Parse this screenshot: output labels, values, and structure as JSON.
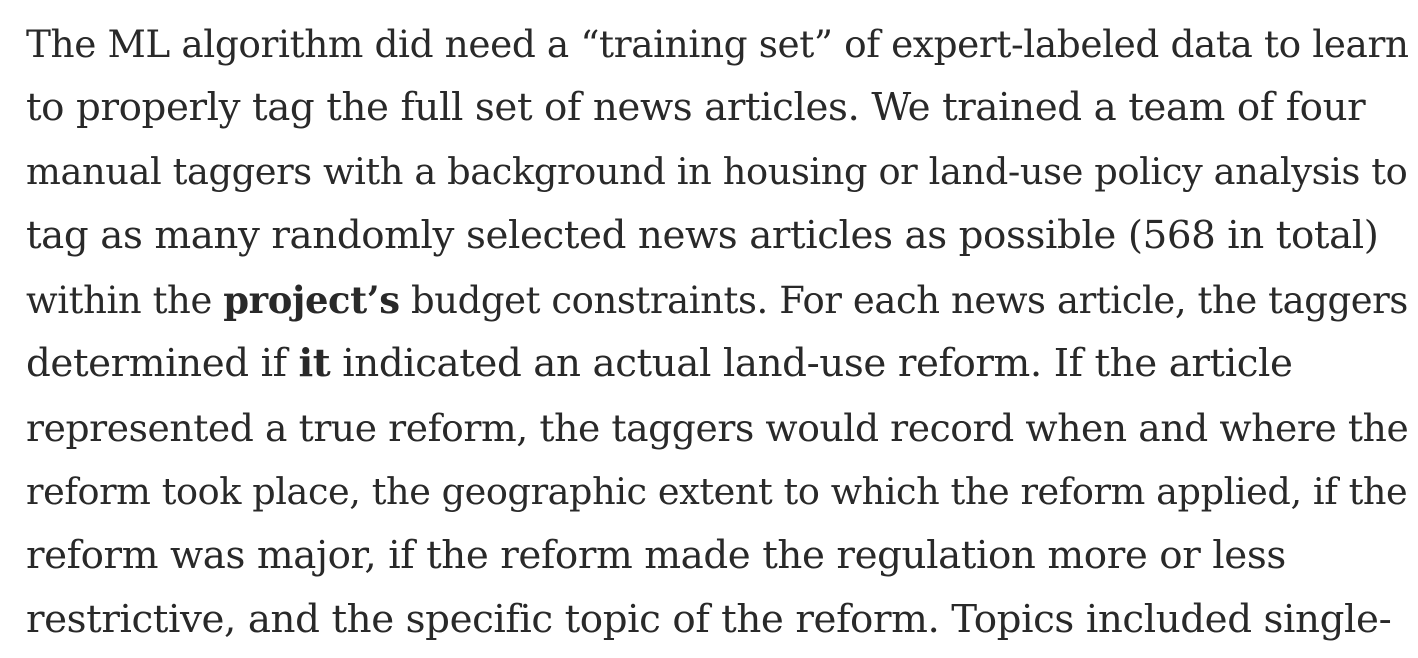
{
  "paragraph": {
    "line1": "The ML algorithm did need a “training set” of expert-labeled data to learn",
    "line2": "to properly tag the full set of news articles. We trained a team of four",
    "line3": "manual taggers with a background in housing or land-use policy analysis to",
    "line4": "tag as many randomly selected news articles as possible (568 in total)",
    "line5_pre": "within the ",
    "line5_bold": "project’s",
    "line5_post": " budget constraints. For each news article, the taggers",
    "line6_pre": "determined if ",
    "line6_bold": "it",
    "line6_post": " indicated an actual land-use reform. If the article",
    "line7": "represented a true reform, the taggers would record when and where the",
    "line8": "reform took place, the geographic extent to which the reform applied, if the",
    "line9": "reform was major, if the reform made the regulation more or less",
    "line10": "restrictive, and the specific topic of the reform. Topics included single-"
  }
}
